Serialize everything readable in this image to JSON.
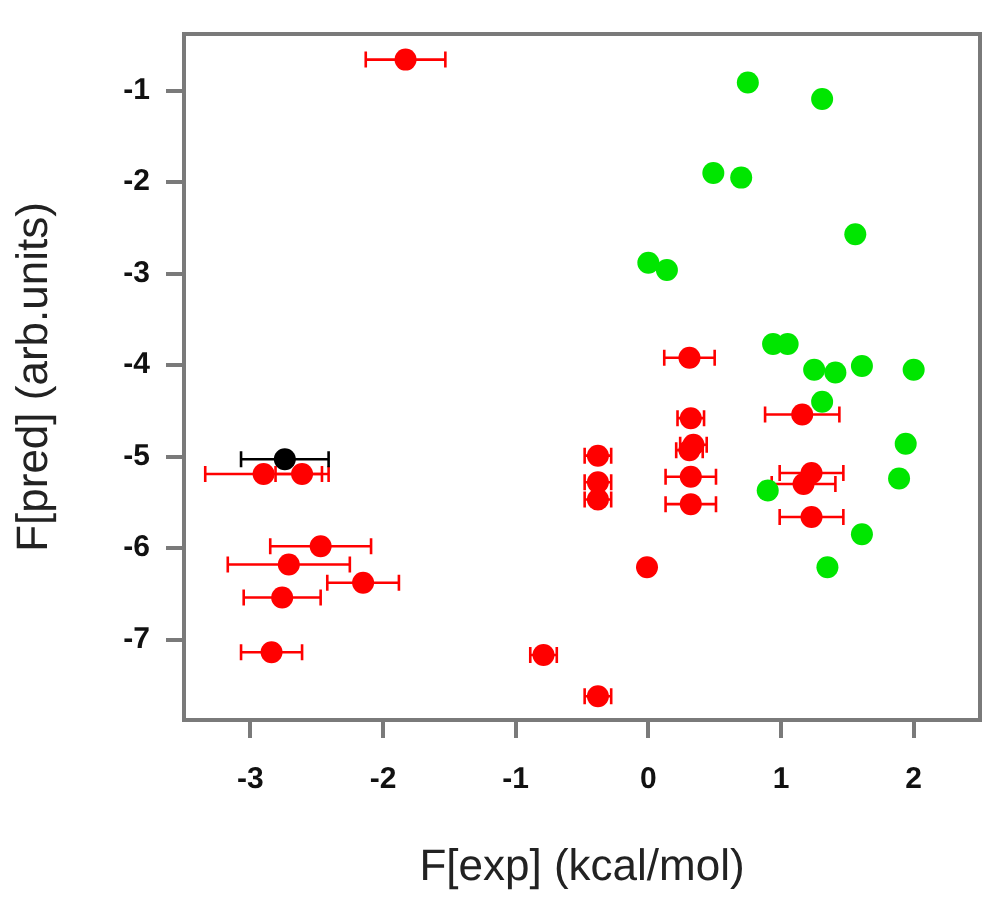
{
  "chart_data": {
    "type": "scatter",
    "xlabel": "F[exp] (kcal/mol)",
    "ylabel": "F[pred] (arb.units)",
    "xlim": [
      -3.5,
      2.5
    ],
    "xticks": [
      -3,
      -2,
      -1,
      0,
      1,
      2
    ],
    "ylim": [
      -7.88,
      -0.38
    ],
    "yticks": [
      -7,
      -6,
      -5,
      -4,
      -3,
      -2,
      -1
    ],
    "grid": false,
    "legend": false,
    "marker": "circle",
    "series": [
      {
        "color": "#00e600",
        "x": [
          0.0,
          0.14,
          0.75,
          1.31,
          0.49,
          0.7,
          1.56,
          0.94,
          1.05,
          1.25,
          1.41,
          1.61,
          2.0,
          1.31,
          1.94,
          1.89,
          0.9,
          1.61,
          1.35
        ],
        "values": [
          -2.88,
          -2.96,
          -0.91,
          -1.09,
          -1.9,
          -1.95,
          -2.57,
          -3.77,
          -3.77,
          -4.05,
          -4.08,
          -4.01,
          -4.05,
          -4.4,
          -4.86,
          -5.24,
          -5.37,
          -5.85,
          -6.21
        ]
      },
      {
        "color": "#ff0000",
        "x": [
          -1.83,
          0.31,
          1.16,
          -0.38,
          -0.38,
          -0.38,
          0.32,
          0.34,
          0.31,
          0.32,
          0.32,
          1.23,
          1.17,
          1.23,
          -0.01,
          -0.38,
          -2.9,
          -2.61,
          -2.47,
          -2.71,
          -2.15,
          -2.76,
          -2.84,
          -0.79
        ],
        "values": [
          -0.66,
          -3.92,
          -4.54,
          -4.99,
          -5.28,
          -5.47,
          -4.58,
          -4.87,
          -4.93,
          -5.22,
          -5.52,
          -5.18,
          -5.3,
          -5.66,
          -6.21,
          -7.62,
          -5.19,
          -5.19,
          -5.98,
          -6.18,
          -6.38,
          -6.54,
          -7.14,
          -7.17
        ],
        "xerrors": [
          0.3,
          0.19,
          0.28,
          0.1,
          0.1,
          0.1,
          0.1,
          0.1,
          0.1,
          0.19,
          0.19,
          0.24,
          0.24,
          0.24,
          null,
          0.1,
          0.44,
          0.2,
          0.38,
          0.46,
          0.27,
          0.29,
          0.23,
          0.1
        ]
      },
      {
        "color": "#000000",
        "x": [
          -2.74
        ],
        "values": [
          -5.03
        ],
        "xerrors": [
          0.33
        ]
      }
    ]
  }
}
